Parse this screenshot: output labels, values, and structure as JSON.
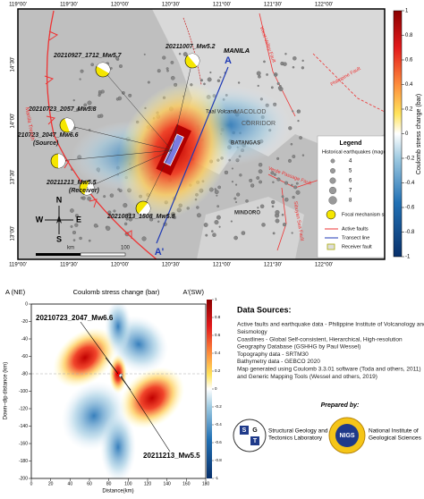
{
  "map": {
    "lon_labels": [
      "119°00'",
      "119°30'",
      "120°00'",
      "120°30'",
      "121°00'",
      "121°30'",
      "122°00'"
    ],
    "lat_labels": [
      "14°30'",
      "14°00'",
      "13°30'",
      "13°00'"
    ],
    "places": [
      "MANILA",
      "Taal Volcano",
      "MACOLOD",
      "CORRIDOR",
      "BATANGAS",
      "MINDORO",
      "Manila Trench",
      "West Valley Fault",
      "Philippine Fault",
      "Verde Passage Fault",
      "Sibuyan Sea Fault"
    ],
    "events": [
      {
        "label": "20210927_1712_Mw5.7"
      },
      {
        "label": "20211007_Mw5.2"
      },
      {
        "label": "20210723_2057_Mw5.8"
      },
      {
        "label": "20210723_2047_Mw6.6",
        "note": "(Source)"
      },
      {
        "label": "20211213_Mw5.5",
        "note": "(Receiver)"
      },
      {
        "label": "20210813_1508_Mw5.8"
      }
    ],
    "section_ends": [
      "A",
      "A'"
    ],
    "compass": {
      "n": "N",
      "s": "S",
      "e": "E",
      "w": "W"
    },
    "scale": {
      "unit": "km",
      "end": "100"
    },
    "legend": {
      "title": "Legend",
      "subtitle": "Historical earthquakes (magnitude)",
      "magnitudes": [
        4,
        5,
        6,
        7,
        8
      ],
      "items": [
        "Focal mechanism solutions",
        "Active faults",
        "Transect line",
        "Receiver fault"
      ]
    }
  },
  "colorbar": {
    "label": "Coulomb stress change (bar)",
    "lim": [
      -1,
      1
    ],
    "ticks": [
      1,
      0.8,
      0.6,
      0.4,
      0.2,
      0,
      -0.2,
      -0.4,
      -0.6,
      -0.8,
      -1
    ]
  },
  "section": {
    "left": "A (NE)",
    "title": "Coulomb stress change (bar)",
    "right": "A'(SW)",
    "xlabel": "Distance(km)",
    "ylabel": "Down−dip distance (km)",
    "xlim": [
      0,
      180
    ],
    "xticks": [
      0,
      20,
      40,
      60,
      80,
      100,
      120,
      140,
      160,
      180
    ],
    "ylim": [
      -200,
      0
    ],
    "yticks": [
      0,
      -20,
      -40,
      -60,
      -80,
      -100,
      -120,
      -140,
      -160,
      -180,
      -200
    ],
    "events": [
      "20210723_2047_Mw6.6",
      "20211213_Mw5.5"
    ],
    "colorbar_lim": [
      -1,
      1
    ],
    "colorbar_ticks": [
      1,
      0.8,
      0.6,
      0.4,
      0.2,
      0,
      -0.2,
      -0.4,
      -0.6,
      -0.8,
      -1
    ]
  },
  "data_sources": {
    "title": "Data Sources:",
    "lines": [
      "Active faults and earthquake data - Philippine Institute of Volcanology and",
      "Seismology",
      "Coastlines - Global Self-consistent, Hierarchical, High-resolution",
      "Geography Database (GSHHG by Paul Wessel)",
      "Topography data - SRTM30",
      "Bathymetry data - GEBCO 2020",
      "Map generated using Coulomb 3.3.01 software (Toda and others, 2011)",
      "and Generic Mapping Tools (Wessel and others, 2019)"
    ]
  },
  "prepared": {
    "title": "Prepared by:",
    "lab1": [
      "Structural Geology and",
      "Tectonics Laboratory"
    ],
    "lab2": [
      "National Institute of",
      "Geological Sciences"
    ],
    "logo1": [
      "S",
      "G",
      "T"
    ],
    "logo2": "NIGS"
  }
}
